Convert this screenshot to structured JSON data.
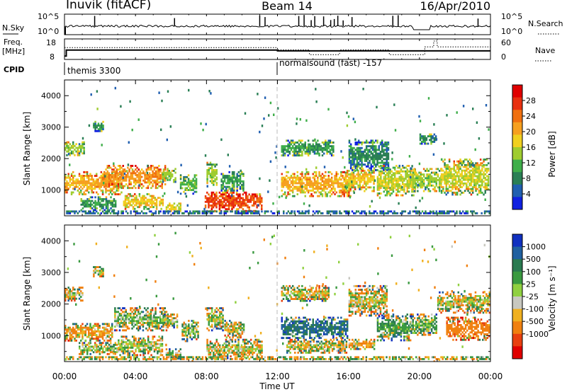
{
  "header": {
    "title": "Inuvik (fitACF)",
    "beam": "Beam 14",
    "date": "16/Apr/2010"
  },
  "noise_panel": {
    "left_label": "N.Sky",
    "left_ticks": [
      "10^5",
      "10^0"
    ],
    "right_label": "N.Search",
    "right_ticks": [
      "10^5",
      "10^0"
    ]
  },
  "freq_panel": {
    "left_label_line1": "Freq.",
    "left_label_line2": "[MHz]",
    "left_ticks": [
      "18",
      "8"
    ],
    "right_label": "Nave",
    "right_ticks": [
      "60",
      "0"
    ]
  },
  "cpid": {
    "label": "CPID",
    "segments": [
      {
        "text": "themis 3300",
        "start_hour": 0
      },
      {
        "text": "normalsound (fast) -157",
        "start_hour": 12
      }
    ]
  },
  "x_axis": {
    "label": "Time UT",
    "ticks": [
      "00:00",
      "04:00",
      "08:00",
      "12:00",
      "16:00",
      "20:00",
      "00:00"
    ],
    "range_hours": [
      0,
      24
    ]
  },
  "power_panel": {
    "ylabel": "Slant Range [km]",
    "yticks": [
      "1000",
      "2000",
      "3000",
      "4000"
    ],
    "colorbar_label": "Power [dB]",
    "colorbar_ticks": [
      "4",
      "8",
      "12",
      "16",
      "20",
      "24",
      "28"
    ]
  },
  "velocity_panel": {
    "ylabel": "Slant Range [km]",
    "yticks": [
      "1000",
      "2000",
      "3000",
      "4000"
    ],
    "colorbar_label": "Velocity [m s⁻¹]",
    "colorbar_ticks": [
      "1000",
      "500",
      "100",
      "25",
      "-25",
      "-100",
      "-500",
      "-1000"
    ]
  },
  "colors": {
    "power_scale": [
      "#1020e0",
      "#205fb0",
      "#2a7f55",
      "#3fae4a",
      "#9fcc30",
      "#f0d020",
      "#f6a020",
      "#f07010",
      "#e83010",
      "#e00000"
    ],
    "velocity_scale": [
      "#1030c0",
      "#2060a0",
      "#2a7a50",
      "#3a9a40",
      "#90d040",
      "#c8c8c0",
      "#f0b020",
      "#f08010",
      "#e84010",
      "#e00000"
    ]
  },
  "chart_data": [
    {
      "type": "heatmap",
      "name": "power",
      "x_range_hours": [
        0,
        24
      ],
      "y_range_km": [
        180,
        4500
      ],
      "value_range_db": [
        0,
        32
      ],
      "regions": [
        {
          "t": [
            0.0,
            1.2
          ],
          "r": [
            2050,
            2550
          ],
          "v": 14
        },
        {
          "t": [
            0.0,
            3.3
          ],
          "r": [
            800,
            1600
          ],
          "v": 20
        },
        {
          "t": [
            0.9,
            3.0
          ],
          "r": [
            300,
            800
          ],
          "v": 10
        },
        {
          "t": [
            1.6,
            2.3
          ],
          "r": [
            2800,
            3200
          ],
          "v": 10
        },
        {
          "t": [
            2.2,
            5.8
          ],
          "r": [
            1000,
            1800
          ],
          "v": 22
        },
        {
          "t": [
            3.3,
            5.6
          ],
          "r": [
            350,
            900
          ],
          "v": 18
        },
        {
          "t": [
            5.5,
            6.3
          ],
          "r": [
            1200,
            1700
          ],
          "v": 14
        },
        {
          "t": [
            5.7,
            6.6
          ],
          "r": [
            250,
            600
          ],
          "v": 16
        },
        {
          "t": [
            6.5,
            7.5
          ],
          "r": [
            800,
            1500
          ],
          "v": 12
        },
        {
          "t": [
            7.9,
            11.2
          ],
          "r": [
            250,
            950
          ],
          "v": 26
        },
        {
          "t": [
            8.0,
            8.7
          ],
          "r": [
            1100,
            1900
          ],
          "v": 14
        },
        {
          "t": [
            8.8,
            10.2
          ],
          "r": [
            900,
            1600
          ],
          "v": 10
        },
        {
          "t": [
            12.2,
            15.2
          ],
          "r": [
            2050,
            2600
          ],
          "v": 10
        },
        {
          "t": [
            12.2,
            16.2
          ],
          "r": [
            750,
            1600
          ],
          "v": 20
        },
        {
          "t": [
            15.8,
            17.5
          ],
          "r": [
            900,
            1700
          ],
          "v": 18
        },
        {
          "t": [
            16.0,
            18.3
          ],
          "r": [
            1600,
            2600
          ],
          "v": 8
        },
        {
          "t": [
            17.6,
            19.8
          ],
          "r": [
            800,
            1800
          ],
          "v": 16
        },
        {
          "t": [
            19.5,
            21.3
          ],
          "r": [
            900,
            1700
          ],
          "v": 14
        },
        {
          "t": [
            21.2,
            24.0
          ],
          "r": [
            800,
            2000
          ],
          "v": 16
        },
        {
          "t": [
            20.0,
            21.0
          ],
          "r": [
            2400,
            2800
          ],
          "v": 8
        },
        {
          "t": [
            0.0,
            24.0
          ],
          "r": [
            180,
            350
          ],
          "v": 6
        }
      ]
    },
    {
      "type": "heatmap",
      "name": "velocity",
      "x_range_hours": [
        0,
        24
      ],
      "y_range_km": [
        180,
        4500
      ],
      "value_range_ms": [
        -1000,
        1000
      ],
      "regions": [
        {
          "t": [
            0.0,
            1.1
          ],
          "r": [
            2050,
            2550
          ],
          "v": 0
        },
        {
          "t": [
            0.0,
            2.8
          ],
          "r": [
            800,
            1400
          ],
          "v": -120
        },
        {
          "t": [
            0.8,
            3.0
          ],
          "r": [
            350,
            800
          ],
          "v": 60
        },
        {
          "t": [
            1.6,
            2.3
          ],
          "r": [
            2800,
            3200
          ],
          "v": 60
        },
        {
          "t": [
            2.8,
            5.8
          ],
          "r": [
            1100,
            1900
          ],
          "v": 90
        },
        {
          "t": [
            3.0,
            5.6
          ],
          "r": [
            350,
            1000
          ],
          "v": 30
        },
        {
          "t": [
            5.6,
            6.4
          ],
          "r": [
            1200,
            1700
          ],
          "v": 70
        },
        {
          "t": [
            5.7,
            6.6
          ],
          "r": [
            250,
            600
          ],
          "v": 40
        },
        {
          "t": [
            6.6,
            7.6
          ],
          "r": [
            800,
            1500
          ],
          "v": 80
        },
        {
          "t": [
            8.0,
            11.2
          ],
          "r": [
            250,
            900
          ],
          "v": 0
        },
        {
          "t": [
            8.0,
            9.0
          ],
          "r": [
            1100,
            1900
          ],
          "v": 40
        },
        {
          "t": [
            9.0,
            10.2
          ],
          "r": [
            900,
            1500
          ],
          "v": 0
        },
        {
          "t": [
            12.2,
            15.0
          ],
          "r": [
            2050,
            2600
          ],
          "v": 0
        },
        {
          "t": [
            12.2,
            16.0
          ],
          "r": [
            900,
            1600
          ],
          "v": 500
        },
        {
          "t": [
            12.5,
            16.0
          ],
          "r": [
            400,
            900
          ],
          "v": 0
        },
        {
          "t": [
            16.0,
            17.5
          ],
          "r": [
            500,
            900
          ],
          "v": -120
        },
        {
          "t": [
            16.0,
            18.2
          ],
          "r": [
            1600,
            2600
          ],
          "v": 0
        },
        {
          "t": [
            17.6,
            19.6
          ],
          "r": [
            800,
            1700
          ],
          "v": 200
        },
        {
          "t": [
            19.5,
            21.0
          ],
          "r": [
            1000,
            1700
          ],
          "v": 150
        },
        {
          "t": [
            21.5,
            24.0
          ],
          "r": [
            800,
            1600
          ],
          "v": -300
        },
        {
          "t": [
            21.0,
            24.0
          ],
          "r": [
            1700,
            2400
          ],
          "v": 0
        },
        {
          "t": [
            0.0,
            24.0
          ],
          "r": [
            180,
            350
          ],
          "v": 30
        }
      ]
    },
    {
      "type": "line",
      "name": "frequency",
      "x": [
        0.0,
        0.1,
        0.1,
        12.0,
        12.0,
        24.0
      ],
      "y": [
        8.0,
        8.0,
        11.5,
        11.5,
        11.0,
        11.0
      ],
      "units": "MHz"
    },
    {
      "type": "line",
      "name": "nave",
      "x": [
        0.0,
        12.0,
        12.0,
        13.8,
        13.8,
        15.5,
        15.5,
        18.3,
        18.3,
        20.3,
        20.3,
        20.8,
        20.8,
        21.0,
        21.0,
        24.0
      ],
      "y": [
        38,
        38,
        30,
        30,
        14,
        14,
        30,
        30,
        14,
        14,
        40,
        40,
        60,
        60,
        40,
        40
      ]
    }
  ]
}
